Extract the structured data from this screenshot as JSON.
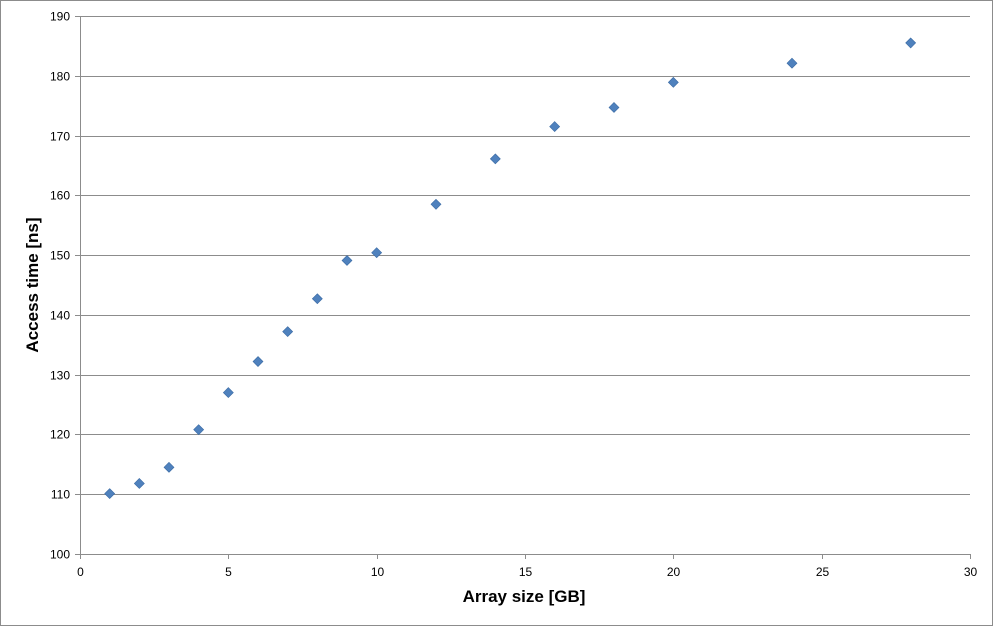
{
  "chart_data": {
    "type": "scatter",
    "title": "",
    "xlabel": "Array size [GB]",
    "ylabel": "Access time [ns]",
    "xlim": [
      0,
      30
    ],
    "ylim": [
      100,
      190
    ],
    "xticks": [
      0,
      5,
      10,
      15,
      20,
      25,
      30
    ],
    "yticks": [
      100,
      110,
      120,
      130,
      140,
      150,
      160,
      170,
      180,
      190
    ],
    "grid": "horizontal",
    "legend": "none",
    "marker": "diamond",
    "series": [
      {
        "color": "#4f81bd",
        "x": [
          1,
          2,
          3,
          4,
          5,
          6,
          7,
          8,
          9,
          10,
          12,
          14,
          16,
          18,
          20,
          24,
          28
        ],
        "y": [
          110.1,
          111.8,
          114.5,
          120.8,
          127.0,
          132.2,
          137.2,
          142.7,
          149.1,
          150.4,
          158.5,
          166.1,
          171.5,
          174.7,
          178.9,
          182.1,
          185.5
        ]
      }
    ]
  }
}
